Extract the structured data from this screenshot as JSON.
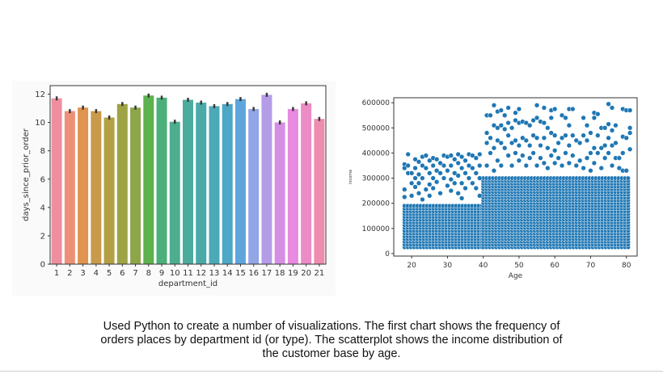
{
  "chart_data": [
    {
      "type": "bar",
      "xlabel": "department_id",
      "ylabel": "days_since_prior_order",
      "ylim": [
        0,
        12.6
      ],
      "yticks": [
        0,
        2,
        4,
        6,
        8,
        10,
        12
      ],
      "categories": [
        "1",
        "2",
        "3",
        "4",
        "5",
        "6",
        "7",
        "8",
        "9",
        "10",
        "11",
        "12",
        "13",
        "14",
        "15",
        "16",
        "17",
        "18",
        "19",
        "20",
        "21"
      ],
      "values": [
        11.7,
        10.8,
        11.05,
        10.8,
        10.35,
        11.3,
        11.05,
        11.9,
        11.75,
        10.05,
        11.6,
        11.4,
        11.15,
        11.3,
        11.65,
        10.95,
        11.95,
        10.0,
        10.95,
        11.35,
        10.25
      ],
      "error_bars": true,
      "colors": [
        "#ef8ea0",
        "#ec9077",
        "#e0944f",
        "#c99a4c",
        "#b2a043",
        "#9ea445",
        "#8ca649",
        "#5db14e",
        "#4cb07a",
        "#4cae8e",
        "#4bac9d",
        "#4aaaa9",
        "#4ba9b8",
        "#4da7c6",
        "#5fa5dc",
        "#92a5e6",
        "#b49ce8",
        "#d48fe3",
        "#e88ae0",
        "#ec8bc5",
        "#ee8caf"
      ],
      "grid": false
    },
    {
      "type": "scatter",
      "xlabel": "Age",
      "ylabel": "income",
      "xlim": [
        15,
        83
      ],
      "ylim": [
        -10000,
        620000
      ],
      "xticks": [
        20,
        30,
        40,
        50,
        60,
        70,
        80
      ],
      "yticks": [
        0,
        100000,
        200000,
        300000,
        400000,
        500000,
        600000
      ],
      "color": "#1f77b4",
      "grid": false,
      "dense_regions": [
        {
          "age": [
            18,
            40
          ],
          "income": [
            25000,
            200000
          ]
        },
        {
          "age": [
            40,
            81
          ],
          "income": [
            25000,
            300000
          ]
        }
      ],
      "points": [
        [
          18,
          355000
        ],
        [
          18,
          340000
        ],
        [
          18,
          255000
        ],
        [
          18,
          225000
        ],
        [
          19,
          395000
        ],
        [
          19,
          350000
        ],
        [
          19,
          320000
        ],
        [
          20,
          320000
        ],
        [
          20,
          280000
        ],
        [
          20,
          230000
        ],
        [
          21,
          375000
        ],
        [
          21,
          340000
        ],
        [
          21,
          300000
        ],
        [
          21,
          265000
        ],
        [
          22,
          365000
        ],
        [
          22,
          315000
        ],
        [
          22,
          280000
        ],
        [
          22,
          240000
        ],
        [
          23,
          385000
        ],
        [
          23,
          350000
        ],
        [
          23,
          300000
        ],
        [
          23,
          215000
        ],
        [
          24,
          390000
        ],
        [
          24,
          340000
        ],
        [
          24,
          255000
        ],
        [
          25,
          370000
        ],
        [
          25,
          320000
        ],
        [
          25,
          275000
        ],
        [
          25,
          230000
        ],
        [
          26,
          380000
        ],
        [
          26,
          350000
        ],
        [
          26,
          300000
        ],
        [
          26,
          260000
        ],
        [
          27,
          375000
        ],
        [
          27,
          330000
        ],
        [
          27,
          285000
        ],
        [
          28,
          360000
        ],
        [
          28,
          320000
        ],
        [
          28,
          240000
        ],
        [
          29,
          390000
        ],
        [
          29,
          350000
        ],
        [
          29,
          300000
        ],
        [
          30,
          385000
        ],
        [
          30,
          330000
        ],
        [
          30,
          270000
        ],
        [
          31,
          390000
        ],
        [
          31,
          350000
        ],
        [
          31,
          295000
        ],
        [
          31,
          250000
        ],
        [
          32,
          375000
        ],
        [
          32,
          320000
        ],
        [
          32,
          280000
        ],
        [
          33,
          395000
        ],
        [
          33,
          360000
        ],
        [
          33,
          310000
        ],
        [
          33,
          240000
        ],
        [
          34,
          385000
        ],
        [
          34,
          340000
        ],
        [
          34,
          280000
        ],
        [
          34,
          220000
        ],
        [
          35,
          370000
        ],
        [
          35,
          320000
        ],
        [
          35,
          260000
        ],
        [
          36,
          395000
        ],
        [
          36,
          350000
        ],
        [
          36,
          300000
        ],
        [
          37,
          390000
        ],
        [
          37,
          340000
        ],
        [
          37,
          280000
        ],
        [
          38,
          380000
        ],
        [
          38,
          320000
        ],
        [
          38,
          260000
        ],
        [
          39,
          395000
        ],
        [
          39,
          350000
        ],
        [
          39,
          300000
        ],
        [
          39,
          230000
        ],
        [
          41,
          550000
        ],
        [
          41,
          480000
        ],
        [
          41,
          440000
        ],
        [
          41,
          350000
        ],
        [
          42,
          550000
        ],
        [
          42,
          460000
        ],
        [
          42,
          400000
        ],
        [
          43,
          590000
        ],
        [
          43,
          510000
        ],
        [
          43,
          420000
        ],
        [
          43,
          330000
        ],
        [
          44,
          565000
        ],
        [
          44,
          500000
        ],
        [
          44,
          450000
        ],
        [
          44,
          370000
        ],
        [
          45,
          570000
        ],
        [
          45,
          510000
        ],
        [
          45,
          440000
        ],
        [
          45,
          350000
        ],
        [
          46,
          550000
        ],
        [
          46,
          495000
        ],
        [
          46,
          420000
        ],
        [
          47,
          580000
        ],
        [
          47,
          520000
        ],
        [
          47,
          470000
        ],
        [
          47,
          390000
        ],
        [
          48,
          500000
        ],
        [
          48,
          440000
        ],
        [
          48,
          350000
        ],
        [
          49,
          560000
        ],
        [
          49,
          530000
        ],
        [
          49,
          450000
        ],
        [
          49,
          400000
        ],
        [
          50,
          575000
        ],
        [
          50,
          520000
        ],
        [
          50,
          430000
        ],
        [
          50,
          370000
        ],
        [
          51,
          525000
        ],
        [
          51,
          460000
        ],
        [
          51,
          390000
        ],
        [
          52,
          520000
        ],
        [
          52,
          450000
        ],
        [
          52,
          350000
        ],
        [
          53,
          510000
        ],
        [
          53,
          430000
        ],
        [
          53,
          380000
        ],
        [
          54,
          530000
        ],
        [
          54,
          470000
        ],
        [
          54,
          400000
        ],
        [
          55,
          590000
        ],
        [
          55,
          540000
        ],
        [
          55,
          460000
        ],
        [
          55,
          350000
        ],
        [
          56,
          525000
        ],
        [
          56,
          430000
        ],
        [
          56,
          380000
        ],
        [
          57,
          580000
        ],
        [
          57,
          520000
        ],
        [
          57,
          460000
        ],
        [
          57,
          360000
        ],
        [
          58,
          500000
        ],
        [
          58,
          420000
        ],
        [
          58,
          340000
        ],
        [
          59,
          570000
        ],
        [
          59,
          540000
        ],
        [
          59,
          480000
        ],
        [
          59,
          390000
        ],
        [
          60,
          575000
        ],
        [
          60,
          470000
        ],
        [
          60,
          410000
        ],
        [
          60,
          360000
        ],
        [
          61,
          440000
        ],
        [
          61,
          380000
        ],
        [
          62,
          550000
        ],
        [
          62,
          460000
        ],
        [
          62,
          350000
        ],
        [
          63,
          540000
        ],
        [
          63,
          470000
        ],
        [
          63,
          400000
        ],
        [
          64,
          575000
        ],
        [
          64,
          510000
        ],
        [
          64,
          430000
        ],
        [
          64,
          360000
        ],
        [
          65,
          575000
        ],
        [
          65,
          470000
        ],
        [
          65,
          390000
        ],
        [
          66,
          450000
        ],
        [
          66,
          350000
        ],
        [
          67,
          440000
        ],
        [
          67,
          370000
        ],
        [
          68,
          540000
        ],
        [
          68,
          470000
        ],
        [
          68,
          340000
        ],
        [
          69,
          510000
        ],
        [
          69,
          450000
        ],
        [
          69,
          380000
        ],
        [
          70,
          480000
        ],
        [
          70,
          400000
        ],
        [
          70,
          330000
        ],
        [
          71,
          560000
        ],
        [
          71,
          540000
        ],
        [
          71,
          420000
        ],
        [
          71,
          360000
        ],
        [
          72,
          555000
        ],
        [
          72,
          470000
        ],
        [
          72,
          400000
        ],
        [
          73,
          500000
        ],
        [
          73,
          420000
        ],
        [
          73,
          340000
        ],
        [
          74,
          500000
        ],
        [
          74,
          430000
        ],
        [
          74,
          380000
        ],
        [
          75,
          595000
        ],
        [
          75,
          515000
        ],
        [
          75,
          460000
        ],
        [
          75,
          400000
        ],
        [
          76,
          580000
        ],
        [
          76,
          490000
        ],
        [
          76,
          430000
        ],
        [
          76,
          350000
        ],
        [
          77,
          510000
        ],
        [
          77,
          440000
        ],
        [
          77,
          380000
        ],
        [
          78,
          380000
        ],
        [
          78,
          340000
        ],
        [
          79,
          575000
        ],
        [
          79,
          465000
        ],
        [
          79,
          400000
        ],
        [
          79,
          330000
        ],
        [
          80,
          570000
        ],
        [
          80,
          460000
        ],
        [
          80,
          330000
        ],
        [
          81,
          570000
        ],
        [
          81,
          500000
        ],
        [
          81,
          480000
        ],
        [
          81,
          415000
        ]
      ]
    }
  ],
  "caption": {
    "lines": [
      "Used Python to create a number of visualizations. The first chart shows the frequency of",
      "orders places by department id (or type). The scatterplot shows the income distribution of",
      "the customer base by age."
    ]
  }
}
